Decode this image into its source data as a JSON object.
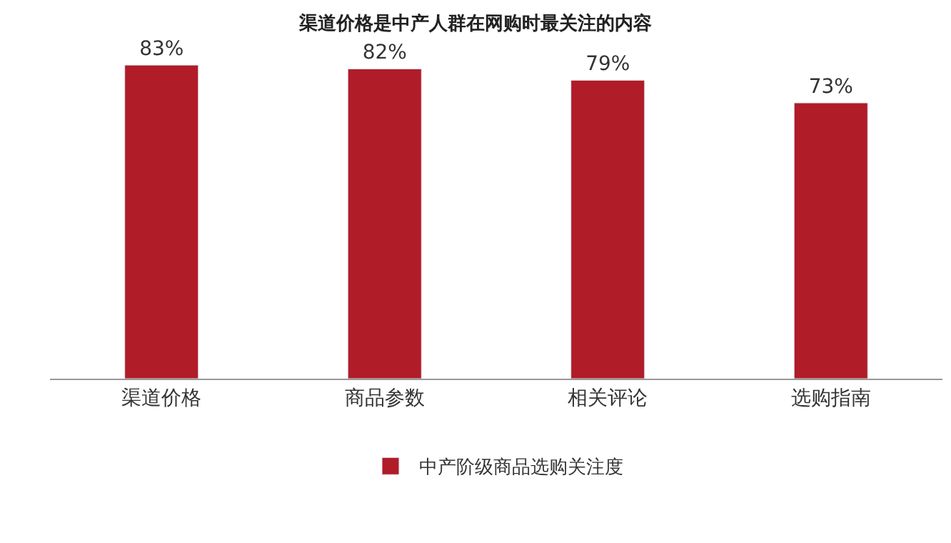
{
  "chart_data": {
    "type": "bar",
    "title": "渠道价格是中产人群在网购时最关注的内容",
    "categories": [
      "渠道价格",
      "商品参数",
      "相关评论",
      "选购指南"
    ],
    "series": [
      {
        "name": "中产阶级商品选购关注度",
        "color": "#b01c28",
        "values": [
          83,
          82,
          79,
          73
        ],
        "value_labels": [
          "83%",
          "82%",
          "79%",
          "73%"
        ]
      }
    ],
    "tick_labels": "x",
    "legend": "bottom"
  }
}
